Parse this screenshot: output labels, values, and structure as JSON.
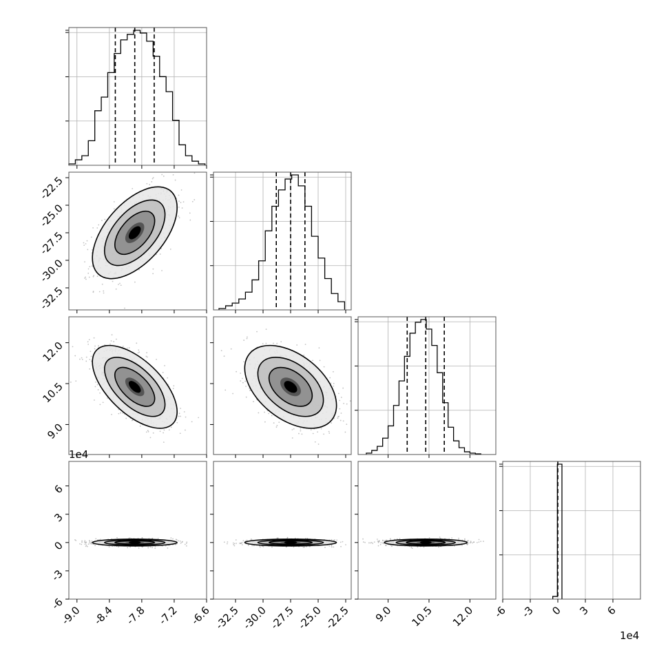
{
  "chart_data": {
    "type": "corner",
    "parameters": 4,
    "grid": true,
    "quantile_style": "dashed black vertical lines",
    "histograms": [
      {
        "param": 0,
        "xlim": [
          -9.15,
          -6.6
        ],
        "bins": [
          -9.15,
          -9.03,
          -8.91,
          -8.79,
          -8.67,
          -8.55,
          -8.43,
          -8.31,
          -8.19,
          -8.07,
          -7.95,
          -7.83,
          -7.71,
          -7.59,
          -7.47,
          -7.35,
          -7.23,
          -7.11,
          -6.99,
          -6.87,
          -6.75,
          -6.63
        ],
        "counts": [
          0.01,
          0.04,
          0.07,
          0.18,
          0.4,
          0.5,
          0.68,
          0.82,
          0.92,
          0.96,
          0.99,
          0.97,
          0.91,
          0.8,
          0.65,
          0.54,
          0.33,
          0.15,
          0.07,
          0.03,
          0.01
        ],
        "quantiles": [
          -8.29,
          -7.93,
          -7.57
        ]
      },
      {
        "param": 1,
        "xlim": [
          -34.5,
          -22.0
        ],
        "bins": [
          -34,
          -33.4,
          -32.8,
          -32.2,
          -31.6,
          -31,
          -30.4,
          -29.8,
          -29.2,
          -28.6,
          -28,
          -27.4,
          -26.8,
          -26.2,
          -25.6,
          -25,
          -24.4,
          -23.8,
          -23.2,
          -22.6
        ],
        "counts": [
          0.01,
          0.03,
          0.05,
          0.08,
          0.13,
          0.22,
          0.36,
          0.58,
          0.76,
          0.88,
          0.96,
          0.99,
          0.91,
          0.76,
          0.54,
          0.38,
          0.23,
          0.12,
          0.06
        ],
        "quantiles": [
          -28.8,
          -27.5,
          -26.2
        ]
      },
      {
        "param": 2,
        "xlim": [
          7.9,
          12.95
        ],
        "bins": [
          8.2,
          8.4,
          8.6,
          8.8,
          9.0,
          9.2,
          9.4,
          9.6,
          9.8,
          10.0,
          10.2,
          10.4,
          10.6,
          10.8,
          11.0,
          11.2,
          11.4,
          11.6,
          11.8,
          12.0,
          12.2,
          12.4
        ],
        "counts": [
          0.01,
          0.03,
          0.06,
          0.12,
          0.21,
          0.36,
          0.54,
          0.72,
          0.89,
          0.97,
          0.99,
          0.92,
          0.8,
          0.6,
          0.38,
          0.2,
          0.1,
          0.05,
          0.02,
          0.01,
          0.005
        ],
        "quantiles": [
          9.7,
          10.38,
          11.06
        ]
      },
      {
        "param": 3,
        "xlim": [
          -6,
          9
        ],
        "bins": [
          -0.55,
          -0.05,
          0.45
        ],
        "counts": [
          0.02,
          1.0
        ],
        "quantiles": [
          0.0
        ]
      }
    ],
    "panels_2d": [
      {
        "row": 1,
        "col": 0,
        "x_param": 0,
        "y_param": 1,
        "center": [
          -7.93,
          -27.5
        ],
        "sigma": [
          0.32,
          1.7
        ],
        "correlation": 0.55,
        "type": "contour+hist2d+scatter"
      },
      {
        "row": 2,
        "col": 0,
        "x_param": 0,
        "y_param": 2,
        "center": [
          -7.93,
          10.38
        ],
        "sigma": [
          0.32,
          0.62
        ],
        "correlation": -0.6,
        "type": "contour+hist2d+scatter"
      },
      {
        "row": 2,
        "col": 1,
        "x_param": 1,
        "y_param": 2,
        "center": [
          -27.5,
          10.38
        ],
        "sigma": [
          1.7,
          0.62
        ],
        "correlation": -0.45,
        "type": "contour+hist2d+scatter"
      },
      {
        "row": 3,
        "col": 0,
        "x_param": 0,
        "y_param": 3,
        "center": [
          -7.93,
          0.0
        ],
        "sigma": [
          0.32,
          0.15
        ],
        "correlation": 0.0,
        "type": "contour+hist2d+scatter"
      },
      {
        "row": 3,
        "col": 1,
        "x_param": 1,
        "y_param": 3,
        "center": [
          -27.5,
          0.0
        ],
        "sigma": [
          1.7,
          0.15
        ],
        "correlation": 0.0,
        "type": "contour+hist2d+scatter"
      },
      {
        "row": 3,
        "col": 2,
        "x_param": 2,
        "y_param": 3,
        "center": [
          10.38,
          0.0
        ],
        "sigma": [
          0.62,
          0.15
        ],
        "correlation": 0.0,
        "type": "contour+hist2d+scatter"
      }
    ],
    "axes": {
      "y_ranges": {
        "1": [
          -34.5,
          -22.0
        ],
        "2": [
          7.9,
          12.95
        ],
        "3": [
          -6,
          8.6
        ]
      },
      "x_ticks": [
        [
          "-9.0",
          "-8.4",
          "-7.8",
          "-7.2",
          "-6.6"
        ],
        [
          "-32.5",
          "-30.0",
          "-27.5",
          "-25.0",
          "-22.5"
        ],
        [
          "9.0",
          "10.5",
          "12.0"
        ],
        [
          "-6",
          "-3",
          "0",
          "3",
          "6"
        ]
      ],
      "x_tick_values": [
        [
          -9.0,
          -8.4,
          -7.8,
          -7.2,
          -6.6
        ],
        [
          -32.5,
          -30.0,
          -27.5,
          -25.0,
          -22.5
        ],
        [
          9.0,
          10.5,
          12.0
        ],
        [
          -6,
          -3,
          0,
          3,
          6
        ]
      ],
      "y_ticks": {
        "1": [
          "-22.5",
          "-25.0",
          "-27.5",
          "-30.0",
          "-32.5"
        ],
        "2": [
          "12.0",
          "10.5",
          "9.0"
        ],
        "3": [
          "6",
          "3",
          "0",
          "-3",
          "-6"
        ]
      },
      "y_tick_values": {
        "1": [
          -22.5,
          -25.0,
          -27.5,
          -30.0,
          -32.5
        ],
        "2": [
          12.0,
          10.5,
          9.0
        ],
        "3": [
          6,
          3,
          0,
          -3,
          -6
        ]
      },
      "offset_labels": {
        "y_row3": "1e4",
        "x_col3": "1e4"
      }
    }
  }
}
